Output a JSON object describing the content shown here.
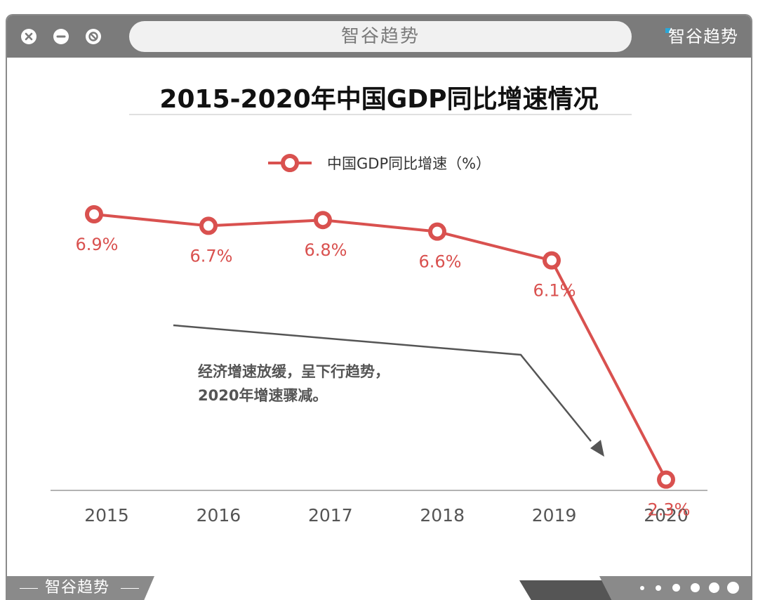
{
  "window": {
    "title": "智谷趋势",
    "brand": "智谷趋势"
  },
  "footer": {
    "brand": "智谷趋势"
  },
  "colors": {
    "line": "#d9514f",
    "label": "#d9514f",
    "frame": "#7b7b7b",
    "axis": "#9a9a9a",
    "arrow": "#555555"
  },
  "chart_data": {
    "type": "line",
    "title": "2015-2020年中国GDP同比增速情况",
    "categories": [
      "2015",
      "2016",
      "2017",
      "2018",
      "2019",
      "2020"
    ],
    "series": [
      {
        "name": "中国GDP同比增速（%）",
        "values": [
          6.9,
          6.7,
          6.8,
          6.6,
          6.1,
          2.3
        ],
        "labels": [
          "6.9%",
          "6.7%",
          "6.8%",
          "6.6%",
          "6.1%",
          "2.3%"
        ]
      }
    ],
    "legend": "top-center",
    "grid": false,
    "annotation": [
      "经济增速放缓，呈下行趋势，",
      "2020年增速骤减。"
    ]
  }
}
